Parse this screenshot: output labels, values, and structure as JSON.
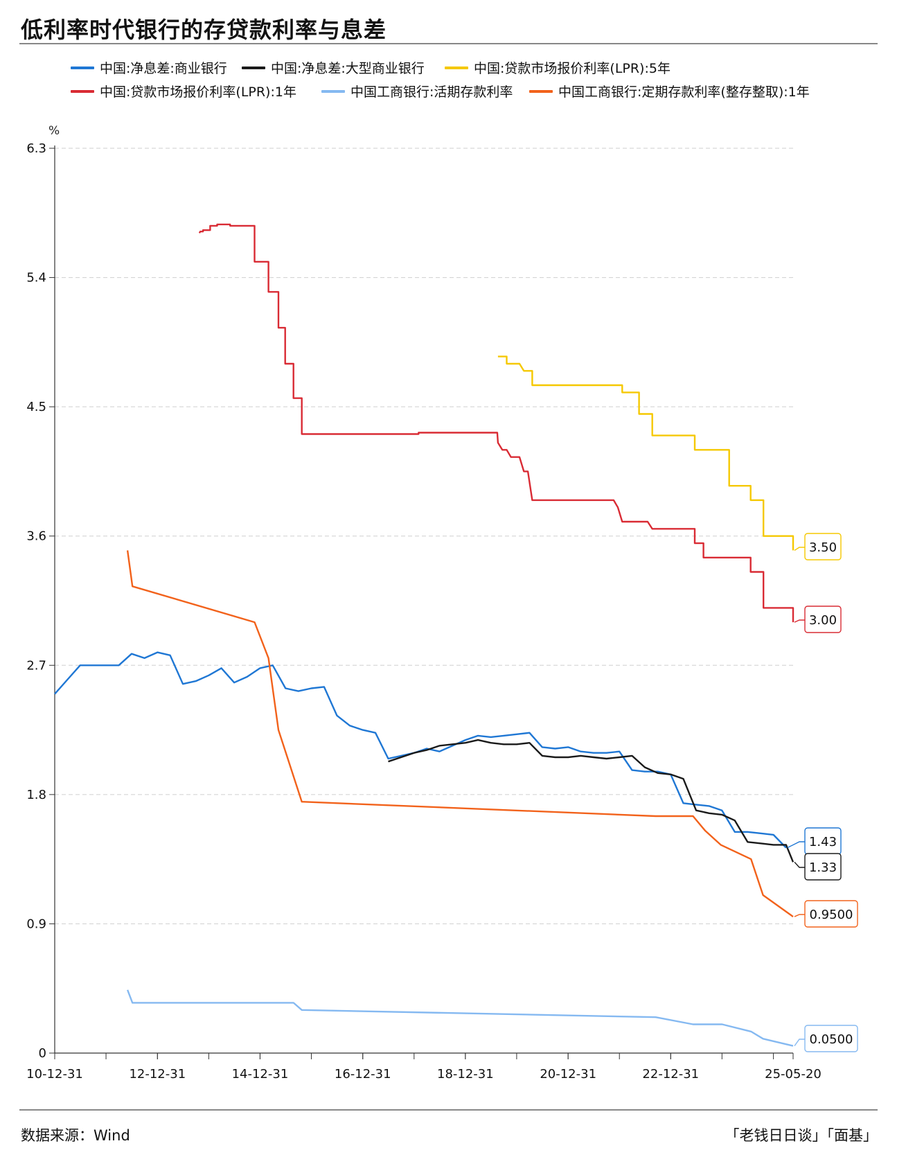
{
  "title": "低利率时代银行的存贷款利率与息差",
  "footer": {
    "source": "数据来源：Wind",
    "brand": "「老钱日日谈」「面基」"
  },
  "chart_data": {
    "type": "line",
    "yunit": "%",
    "ylim": [
      0,
      6.3
    ],
    "yticks": [
      "0",
      "0.9",
      "1.8",
      "2.7",
      "3.6",
      "4.5",
      "5.4",
      "6.3"
    ],
    "x_start": "2010-12-31",
    "x_end": "2025-05-20",
    "xticks": [
      {
        "date": "2010-12-31",
        "label": "10-12-31"
      },
      {
        "date": "2012-12-31",
        "label": "12-12-31"
      },
      {
        "date": "2014-12-31",
        "label": "14-12-31"
      },
      {
        "date": "2016-12-31",
        "label": "16-12-31"
      },
      {
        "date": "2018-12-31",
        "label": "18-12-31"
      },
      {
        "date": "2020-12-31",
        "label": "20-12-31"
      },
      {
        "date": "2022-12-31",
        "label": "22-12-31"
      },
      {
        "date": "2025-05-20",
        "label": "25-05-20"
      }
    ],
    "grid": true,
    "legend_position": "top",
    "series": [
      {
        "name": "中国:净息差:商业银行",
        "color": "#1f77d4",
        "end_label": "1.43",
        "points": [
          [
            "2010-12-31",
            2.5
          ],
          [
            "2011-03-31",
            2.6
          ],
          [
            "2011-06-30",
            2.7
          ],
          [
            "2011-09-30",
            2.7
          ],
          [
            "2011-12-31",
            2.7
          ],
          [
            "2012-03-31",
            2.7
          ],
          [
            "2012-06-30",
            2.78
          ],
          [
            "2012-09-30",
            2.75
          ],
          [
            "2012-12-31",
            2.79
          ],
          [
            "2013-03-31",
            2.77
          ],
          [
            "2013-06-30",
            2.57
          ],
          [
            "2013-09-30",
            2.59
          ],
          [
            "2013-12-31",
            2.63
          ],
          [
            "2014-03-31",
            2.68
          ],
          [
            "2014-06-30",
            2.58
          ],
          [
            "2014-09-30",
            2.62
          ],
          [
            "2014-12-31",
            2.68
          ],
          [
            "2015-03-31",
            2.7
          ],
          [
            "2015-06-30",
            2.54
          ],
          [
            "2015-09-30",
            2.52
          ],
          [
            "2015-12-31",
            2.54
          ],
          [
            "2016-03-31",
            2.55
          ],
          [
            "2016-06-30",
            2.35
          ],
          [
            "2016-09-30",
            2.28
          ],
          [
            "2016-12-31",
            2.25
          ],
          [
            "2017-03-31",
            2.23
          ],
          [
            "2017-06-30",
            2.05
          ],
          [
            "2017-09-30",
            2.07
          ],
          [
            "2017-12-31",
            2.09
          ],
          [
            "2018-03-31",
            2.12
          ],
          [
            "2018-06-30",
            2.1
          ],
          [
            "2018-09-30",
            2.14
          ],
          [
            "2018-12-31",
            2.18
          ],
          [
            "2019-03-31",
            2.21
          ],
          [
            "2019-06-30",
            2.2
          ],
          [
            "2019-09-30",
            2.21
          ],
          [
            "2019-12-31",
            2.22
          ],
          [
            "2020-03-31",
            2.23
          ],
          [
            "2020-06-30",
            2.13
          ],
          [
            "2020-09-30",
            2.12
          ],
          [
            "2020-12-31",
            2.13
          ],
          [
            "2021-03-31",
            2.1
          ],
          [
            "2021-06-30",
            2.09
          ],
          [
            "2021-09-30",
            2.09
          ],
          [
            "2021-12-31",
            2.1
          ],
          [
            "2022-03-31",
            1.97
          ],
          [
            "2022-06-30",
            1.96
          ],
          [
            "2022-09-30",
            1.96
          ],
          [
            "2022-12-31",
            1.94
          ],
          [
            "2023-03-31",
            1.74
          ],
          [
            "2023-06-30",
            1.73
          ],
          [
            "2023-09-30",
            1.72
          ],
          [
            "2023-12-31",
            1.69
          ],
          [
            "2024-03-31",
            1.54
          ],
          [
            "2024-06-30",
            1.54
          ],
          [
            "2024-09-30",
            1.53
          ],
          [
            "2024-12-31",
            1.52
          ],
          [
            "2025-03-31",
            1.43
          ]
        ]
      },
      {
        "name": "中国:净息差:大型商业银行",
        "color": "#1a1a1a",
        "end_label": "1.33",
        "points": [
          [
            "2017-06-30",
            2.03
          ],
          [
            "2017-09-30",
            2.06
          ],
          [
            "2017-12-31",
            2.09
          ],
          [
            "2018-03-31",
            2.11
          ],
          [
            "2018-06-30",
            2.14
          ],
          [
            "2018-09-30",
            2.15
          ],
          [
            "2018-12-31",
            2.16
          ],
          [
            "2019-03-31",
            2.18
          ],
          [
            "2019-06-30",
            2.16
          ],
          [
            "2019-09-30",
            2.15
          ],
          [
            "2019-12-31",
            2.15
          ],
          [
            "2020-03-31",
            2.16
          ],
          [
            "2020-06-30",
            2.07
          ],
          [
            "2020-09-30",
            2.06
          ],
          [
            "2020-12-31",
            2.06
          ],
          [
            "2021-03-31",
            2.07
          ],
          [
            "2021-06-30",
            2.06
          ],
          [
            "2021-09-30",
            2.05
          ],
          [
            "2021-12-31",
            2.06
          ],
          [
            "2022-03-31",
            2.07
          ],
          [
            "2022-06-30",
            1.99
          ],
          [
            "2022-09-30",
            1.95
          ],
          [
            "2022-12-31",
            1.94
          ],
          [
            "2023-03-31",
            1.91
          ],
          [
            "2023-06-30",
            1.69
          ],
          [
            "2023-09-30",
            1.67
          ],
          [
            "2023-12-31",
            1.66
          ],
          [
            "2024-03-31",
            1.62
          ],
          [
            "2024-06-30",
            1.47
          ],
          [
            "2024-09-30",
            1.46
          ],
          [
            "2024-12-31",
            1.45
          ],
          [
            "2025-03-31",
            1.45
          ],
          [
            "2025-05-20",
            1.33
          ]
        ]
      },
      {
        "name": "中国:贷款市场报价利率(LPR):5年",
        "color": "#f5c800",
        "end_label": "3.50",
        "points": [
          [
            "2019-08-20",
            4.85
          ],
          [
            "2019-10-21",
            4.85
          ],
          [
            "2019-10-21",
            4.8
          ],
          [
            "2020-01-20",
            4.8
          ],
          [
            "2020-02-20",
            4.75
          ],
          [
            "2020-04-20",
            4.75
          ],
          [
            "2020-04-20",
            4.65
          ],
          [
            "2022-01-20",
            4.65
          ],
          [
            "2022-01-20",
            4.6
          ],
          [
            "2022-05-20",
            4.6
          ],
          [
            "2022-05-20",
            4.45
          ],
          [
            "2022-08-22",
            4.45
          ],
          [
            "2022-08-22",
            4.3
          ],
          [
            "2023-06-20",
            4.3
          ],
          [
            "2023-06-20",
            4.2
          ],
          [
            "2024-02-20",
            4.2
          ],
          [
            "2024-02-20",
            3.95
          ],
          [
            "2024-07-22",
            3.95
          ],
          [
            "2024-07-22",
            3.85
          ],
          [
            "2024-10-21",
            3.85
          ],
          [
            "2024-10-21",
            3.6
          ],
          [
            "2025-05-20",
            3.6
          ],
          [
            "2025-05-20",
            3.5
          ]
        ]
      },
      {
        "name": "中国:贷款市场报价利率(LPR):1年",
        "color": "#d92b34",
        "end_label": "3.00",
        "points": [
          [
            "2013-10-25",
            5.71
          ],
          [
            "2013-11-01",
            5.72
          ],
          [
            "2013-11-20",
            5.72
          ],
          [
            "2013-11-20",
            5.73
          ],
          [
            "2014-01-10",
            5.73
          ],
          [
            "2014-01-10",
            5.76
          ],
          [
            "2014-03-01",
            5.76
          ],
          [
            "2014-03-01",
            5.77
          ],
          [
            "2014-06-01",
            5.77
          ],
          [
            "2014-06-01",
            5.76
          ],
          [
            "2014-11-22",
            5.76
          ],
          [
            "2014-11-22",
            5.51
          ],
          [
            "2015-03-01",
            5.51
          ],
          [
            "2015-03-01",
            5.3
          ],
          [
            "2015-05-11",
            5.3
          ],
          [
            "2015-05-11",
            5.05
          ],
          [
            "2015-06-28",
            5.05
          ],
          [
            "2015-06-28",
            4.8
          ],
          [
            "2015-08-26",
            4.8
          ],
          [
            "2015-08-26",
            4.56
          ],
          [
            "2015-10-24",
            4.56
          ],
          [
            "2015-10-24",
            4.31
          ],
          [
            "2018-02-01",
            4.31
          ],
          [
            "2018-02-01",
            4.32
          ],
          [
            "2019-08-15",
            4.32
          ],
          [
            "2019-08-20",
            4.25
          ],
          [
            "2019-09-20",
            4.2
          ],
          [
            "2019-10-21",
            4.2
          ],
          [
            "2019-11-20",
            4.15
          ],
          [
            "2020-01-20",
            4.15
          ],
          [
            "2020-02-20",
            4.05
          ],
          [
            "2020-03-20",
            4.05
          ],
          [
            "2020-04-20",
            3.85
          ],
          [
            "2021-11-20",
            3.85
          ],
          [
            "2021-12-20",
            3.8
          ],
          [
            "2022-01-20",
            3.7
          ],
          [
            "2022-07-20",
            3.7
          ],
          [
            "2022-08-22",
            3.65
          ],
          [
            "2023-06-20",
            3.65
          ],
          [
            "2023-06-20",
            3.55
          ],
          [
            "2023-08-21",
            3.55
          ],
          [
            "2023-08-21",
            3.45
          ],
          [
            "2024-07-22",
            3.45
          ],
          [
            "2024-07-22",
            3.35
          ],
          [
            "2024-10-21",
            3.35
          ],
          [
            "2024-10-21",
            3.1
          ],
          [
            "2025-05-20",
            3.1
          ],
          [
            "2025-05-20",
            3.0
          ]
        ]
      },
      {
        "name": "中国工商银行:活期存款利率",
        "color": "#85b9f1",
        "end_label": "0.0500",
        "points": [
          [
            "2012-06-01",
            0.44
          ],
          [
            "2012-07-06",
            0.35
          ],
          [
            "2015-08-26",
            0.35
          ],
          [
            "2015-10-24",
            0.3
          ],
          [
            "2022-09-15",
            0.25
          ],
          [
            "2023-06-08",
            0.2
          ],
          [
            "2023-09-01",
            0.2
          ],
          [
            "2024-01-01",
            0.2
          ],
          [
            "2024-07-25",
            0.15
          ],
          [
            "2024-10-18",
            0.1
          ],
          [
            "2025-05-20",
            0.05
          ]
        ]
      },
      {
        "name": "中国工商银行:定期存款利率(整存整取):1年",
        "color": "#f2621b",
        "end_label": "0.9500",
        "points": [
          [
            "2012-06-01",
            3.5
          ],
          [
            "2012-07-06",
            3.25
          ],
          [
            "2014-11-22",
            3.0
          ],
          [
            "2015-03-01",
            2.75
          ],
          [
            "2015-05-11",
            2.25
          ],
          [
            "2015-10-24",
            1.75
          ],
          [
            "2022-09-15",
            1.65
          ],
          [
            "2023-06-08",
            1.65
          ],
          [
            "2023-09-01",
            1.55
          ],
          [
            "2023-12-22",
            1.45
          ],
          [
            "2024-07-25",
            1.35
          ],
          [
            "2024-10-18",
            1.1
          ],
          [
            "2025-05-20",
            0.95
          ]
        ]
      }
    ]
  }
}
